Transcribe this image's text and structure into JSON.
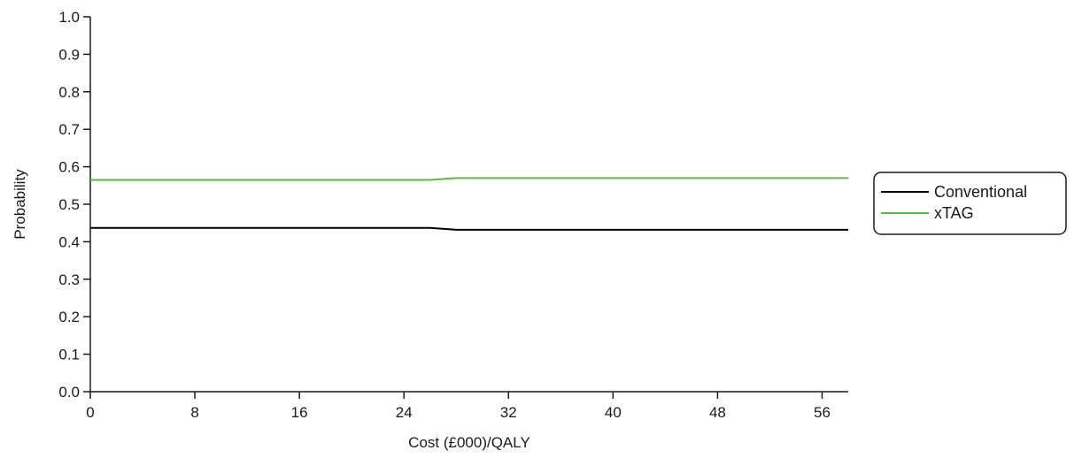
{
  "chart_data": {
    "type": "line",
    "title": "",
    "xlabel": "Cost (£000)/QALY",
    "ylabel": "Probability",
    "xlim": [
      0,
      58
    ],
    "ylim": [
      0,
      1
    ],
    "xticks": [
      "0",
      "8",
      "16",
      "24",
      "32",
      "40",
      "48",
      "56"
    ],
    "yticks": [
      "0.0",
      "0.1",
      "0.2",
      "0.3",
      "0.4",
      "0.5",
      "0.6",
      "0.7",
      "0.8",
      "0.9",
      "1.0"
    ],
    "grid": false,
    "legend_position": "right",
    "series": [
      {
        "name": "Conventional",
        "color": "#000000",
        "x": [
          0,
          26,
          28,
          58
        ],
        "y": [
          0.437,
          0.437,
          0.432,
          0.432
        ]
      },
      {
        "name": "xTAG",
        "color": "#5cb845",
        "x": [
          0,
          26,
          28,
          58
        ],
        "y": [
          0.565,
          0.565,
          0.57,
          0.57
        ]
      }
    ]
  }
}
